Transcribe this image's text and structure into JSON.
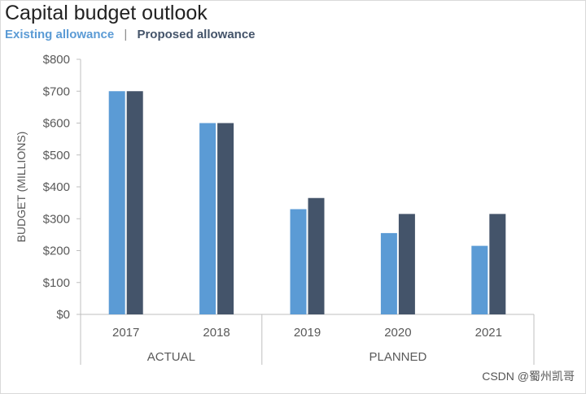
{
  "title": "Capital budget outlook",
  "legend": {
    "separator": "|",
    "items": [
      {
        "label": "Existing allowance",
        "color": "#5b9bd5"
      },
      {
        "label": "Proposed allowance",
        "color": "#44546a"
      }
    ]
  },
  "watermark": "CSDN @蜀州凯哥",
  "chart_data": {
    "type": "bar",
    "title": "Capital budget outlook",
    "ylabel": "BUDGET (MILLIONS)",
    "xlabel": "",
    "ylim": [
      0,
      800
    ],
    "yticks": [
      0,
      100,
      200,
      300,
      400,
      500,
      600,
      700,
      800
    ],
    "ytick_labels": [
      "$0",
      "$100",
      "$200",
      "$300",
      "$400",
      "$500",
      "$600",
      "$700",
      "$800"
    ],
    "categories": [
      "2017",
      "2018",
      "2019",
      "2020",
      "2021"
    ],
    "groups": [
      {
        "label": "ACTUAL",
        "categories": [
          "2017",
          "2018"
        ]
      },
      {
        "label": "PLANNED",
        "categories": [
          "2019",
          "2020",
          "2021"
        ]
      }
    ],
    "series": [
      {
        "name": "Existing allowance",
        "color": "#5b9bd5",
        "values": [
          700,
          600,
          330,
          255,
          215
        ]
      },
      {
        "name": "Proposed allowance",
        "color": "#44546a",
        "values": [
          700,
          600,
          365,
          315,
          315
        ]
      }
    ],
    "grid": false,
    "legend_position": "top-left"
  }
}
